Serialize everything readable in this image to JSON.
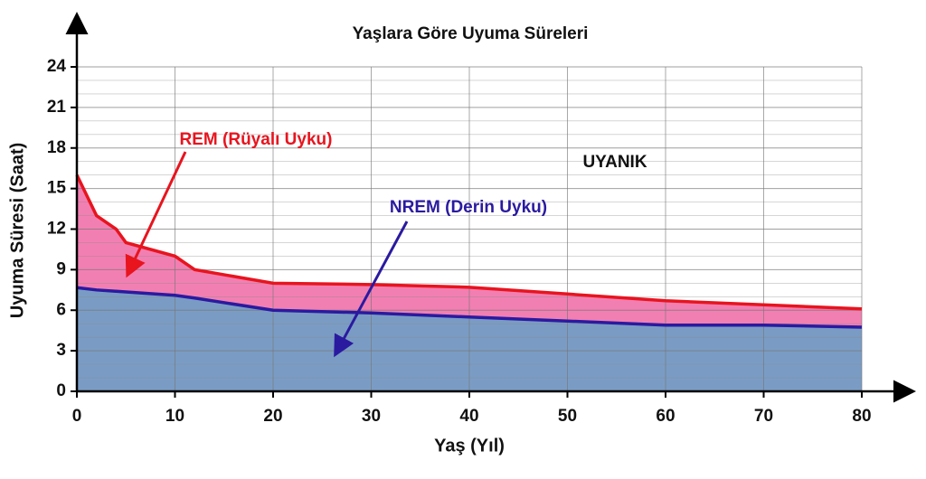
{
  "chart_data": {
    "type": "stacked-area",
    "title": "Yaşlara Göre Uyuma Süreleri",
    "x_label": "Yaş (Yıl)",
    "y_label": "Uyuma Süresi (Saat)",
    "x": [
      0,
      2,
      4,
      5,
      10,
      12,
      20,
      30,
      40,
      50,
      60,
      70,
      80
    ],
    "series": [
      {
        "name": "NREM (Derin Uyku)",
        "color": "#2a1aa0",
        "fill": "#7a9cc4",
        "values": [
          7.67,
          7.5,
          7.4,
          7.35,
          7.1,
          6.9,
          6,
          5.8,
          5.5,
          5.2,
          4.9,
          4.9,
          4.75
        ]
      },
      {
        "name": "REM (Rüyalı Uyku)",
        "color": "#e8141e",
        "fill": "#f27fb2",
        "values": [
          8.33,
          5.5,
          4.6,
          3.65,
          2.9,
          2.1,
          2,
          2.1,
          2.2,
          2,
          1.8,
          1.5,
          1.35
        ]
      }
    ],
    "annotations": [
      "UYANIK"
    ],
    "xlim": [
      0,
      80
    ],
    "xticks": [
      0,
      10,
      20,
      30,
      40,
      50,
      60,
      70,
      80
    ],
    "ylim": [
      0,
      24
    ],
    "yticks": [
      0,
      3,
      6,
      9,
      12,
      15,
      18,
      21,
      24
    ],
    "minor_yticks": [
      1,
      2,
      4,
      5,
      7,
      8,
      10,
      11,
      13,
      14,
      16,
      17,
      19,
      20,
      22,
      23
    ],
    "grid": true
  }
}
